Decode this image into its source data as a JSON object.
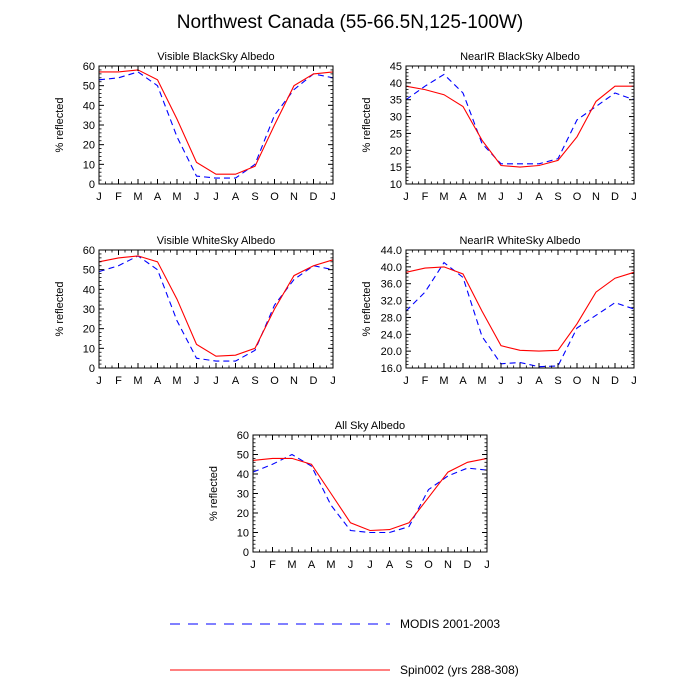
{
  "figure": {
    "title": "Northwest Canada (55-66.5N,125-100W)"
  },
  "legend": {
    "placement": "bottom-center",
    "entries": [
      {
        "name": "MODIS 2001-2003",
        "color": "#0000ff",
        "style": "dashed"
      },
      {
        "name": "Spin002 (yrs 288-308)",
        "color": "#ff0000",
        "style": "solid"
      }
    ]
  },
  "chart_data": [
    {
      "type": "line",
      "title": "Visible BlackSky Albedo",
      "ylabel": "% reflected",
      "categories": [
        "J",
        "F",
        "M",
        "A",
        "M",
        "J",
        "J",
        "A",
        "S",
        "O",
        "N",
        "D",
        "J"
      ],
      "ylim": [
        0,
        60
      ],
      "yticks": [
        0,
        10,
        20,
        30,
        40,
        50,
        60
      ],
      "series": [
        {
          "name": "MODIS 2001-2003",
          "values": [
            53,
            54,
            57,
            50,
            24,
            4,
            3,
            3,
            10,
            35,
            48,
            56,
            54
          ]
        },
        {
          "name": "Spin002 (yrs 288-308)",
          "values": [
            57,
            57,
            58,
            53,
            33,
            11,
            5,
            5,
            9,
            30,
            50,
            56,
            57
          ]
        }
      ]
    },
    {
      "type": "line",
      "title": "NearIR BlackSky Albedo",
      "ylabel": "% reflected",
      "categories": [
        "J",
        "F",
        "M",
        "A",
        "M",
        "J",
        "J",
        "A",
        "S",
        "O",
        "N",
        "D",
        "J"
      ],
      "ylim": [
        10,
        45
      ],
      "yticks": [
        10,
        15,
        20,
        25,
        30,
        35,
        40,
        45
      ],
      "series": [
        {
          "name": "MODIS 2001-2003",
          "values": [
            35,
            39,
            42.5,
            37,
            22,
            16,
            16,
            16,
            17.5,
            29,
            33,
            37,
            35
          ]
        },
        {
          "name": "Spin002 (yrs 288-308)",
          "values": [
            39,
            38,
            36.5,
            33,
            23,
            15.5,
            15,
            15.5,
            17,
            24,
            34.5,
            39,
            39
          ]
        }
      ]
    },
    {
      "type": "line",
      "title": "Visible WhiteSky Albedo",
      "ylabel": "% reflected",
      "categories": [
        "J",
        "F",
        "M",
        "A",
        "M",
        "J",
        "J",
        "A",
        "S",
        "O",
        "N",
        "D",
        "J"
      ],
      "ylim": [
        0,
        60
      ],
      "yticks": [
        0,
        10,
        20,
        30,
        40,
        50,
        60
      ],
      "series": [
        {
          "name": "MODIS 2001-2003",
          "values": [
            49,
            52,
            57,
            50,
            24,
            5,
            3.5,
            3.5,
            9,
            32,
            45,
            52,
            50
          ]
        },
        {
          "name": "Spin002 (yrs 288-308)",
          "values": [
            54,
            56,
            57,
            54,
            35,
            12,
            6,
            6.5,
            10,
            30,
            47,
            52,
            55
          ]
        }
      ]
    },
    {
      "type": "line",
      "title": "NearIR WhiteSky Albedo",
      "ylabel": "% reflected",
      "categories": [
        "J",
        "F",
        "M",
        "A",
        "M",
        "J",
        "J",
        "A",
        "S",
        "O",
        "N",
        "D",
        "J"
      ],
      "ylim": [
        16.0,
        44.0
      ],
      "yticks": [
        "16.0",
        "20.0",
        "24.0",
        "28.0",
        "32.0",
        "36.0",
        "40.0",
        "44.0"
      ],
      "series": [
        {
          "name": "MODIS 2001-2003",
          "values": [
            29.5,
            34,
            41,
            37.5,
            23.5,
            17,
            17.3,
            16.3,
            16.5,
            25.5,
            28.5,
            31.5,
            30
          ]
        },
        {
          "name": "Spin002 (yrs 288-308)",
          "values": [
            38.7,
            39.7,
            40,
            38.3,
            29.5,
            21.3,
            20.2,
            20,
            20.2,
            26.5,
            34,
            37.3,
            38.7
          ]
        }
      ]
    },
    {
      "type": "line",
      "title": "All Sky Albedo",
      "ylabel": "% reflected",
      "categories": [
        "J",
        "F",
        "M",
        "A",
        "M",
        "J",
        "J",
        "A",
        "S",
        "O",
        "N",
        "D",
        "J"
      ],
      "ylim": [
        0,
        60
      ],
      "yticks": [
        0,
        10,
        20,
        30,
        40,
        50,
        60
      ],
      "series": [
        {
          "name": "MODIS 2001-2003",
          "values": [
            41,
            45,
            50,
            44,
            24,
            11,
            10,
            10,
            13,
            32,
            39,
            43,
            42
          ]
        },
        {
          "name": "Spin002 (yrs 288-308)",
          "values": [
            47,
            48,
            48,
            45,
            30,
            15,
            11,
            11.5,
            15,
            28,
            41,
            46,
            48
          ]
        }
      ]
    }
  ]
}
